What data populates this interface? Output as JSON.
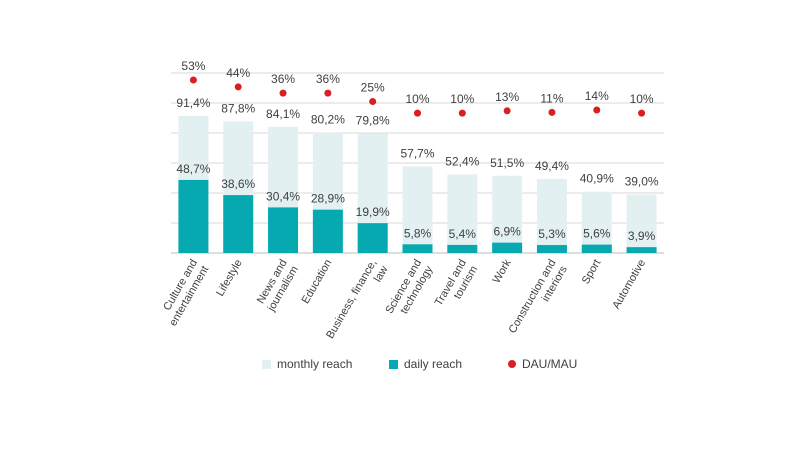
{
  "chart_data": {
    "type": "bar",
    "categories": [
      "Culture and entertainment",
      "Lifestyle",
      "News and journalism",
      "Education",
      "Business, finance, law",
      "Science and technology",
      "Travel and tourism",
      "Work",
      "Construction and interiors",
      "Sport",
      "Automotive"
    ],
    "series": [
      {
        "name": "monthly reach",
        "values": [
          91.4,
          87.8,
          84.1,
          80.2,
          79.8,
          57.7,
          52.4,
          51.5,
          49.4,
          40.9,
          39.0
        ],
        "labels": [
          "91,4%",
          "87,8%",
          "84,1%",
          "80,2%",
          "79,8%",
          "57,7%",
          "52,4%",
          "51,5%",
          "49,4%",
          "40,9%",
          "39,0%"
        ],
        "color": "#e3f0f2"
      },
      {
        "name": "daily reach",
        "values": [
          48.7,
          38.6,
          30.4,
          28.9,
          19.9,
          5.8,
          5.4,
          6.9,
          5.3,
          5.6,
          3.9
        ],
        "labels": [
          "48,7%",
          "38,6%",
          "30,4%",
          "28,9%",
          "19,9%",
          "5,8%",
          "5,4%",
          "6,9%",
          "5,3%",
          "5,6%",
          "3,9%"
        ],
        "color": "#07a9b1"
      },
      {
        "name": "DAU/MAU",
        "values": [
          53,
          44,
          36,
          36,
          25,
          10,
          10,
          13,
          11,
          14,
          10
        ],
        "labels": [
          "53%",
          "44%",
          "36%",
          "36%",
          "25%",
          "10%",
          "10%",
          "13%",
          "11%",
          "14%",
          "10%"
        ],
        "color": "#d91f1f"
      }
    ],
    "ylim": [
      0,
      120
    ],
    "grid": true,
    "legend_position": "bottom"
  },
  "legend": {
    "monthly": "monthly reach",
    "daily": "daily reach",
    "dau": "DAU/MAU"
  }
}
